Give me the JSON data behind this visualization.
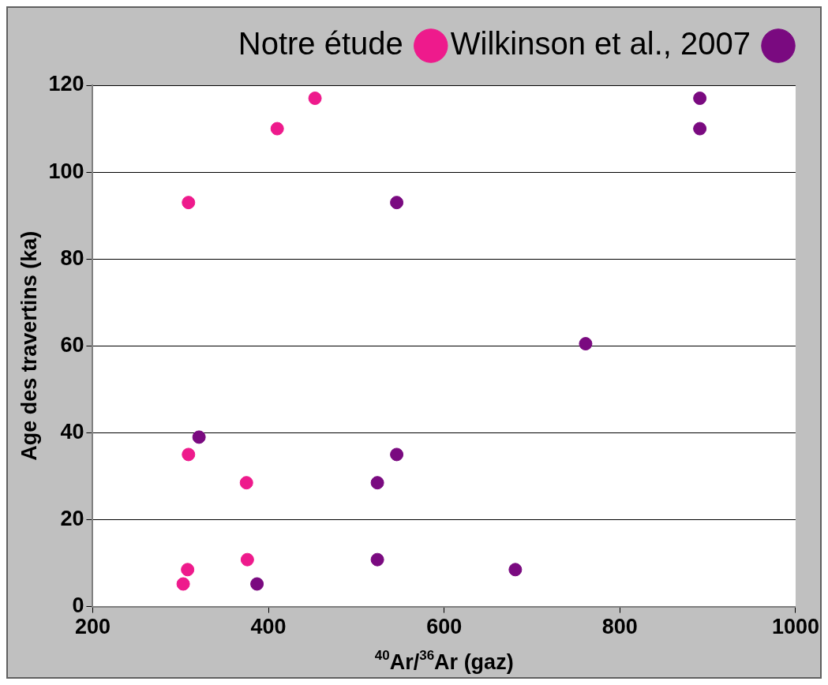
{
  "chart_data": {
    "type": "scatter",
    "xlabel": "$^{40}$Ar/$^{36}$Ar (gaz)",
    "ylabel": "Age des travertins (ka)",
    "series": [
      {
        "name": "Notre étude",
        "color": "#ee1a8c",
        "x": [
          303,
          308,
          309,
          309,
          376,
          375,
          410,
          453
        ],
        "values": [
          5.2,
          8.5,
          35,
          93,
          10.8,
          28.5,
          110,
          117
        ]
      },
      {
        "name": "Wilkinson et al., 2007",
        "color": "#7a0a80",
        "x": [
          387,
          321,
          524,
          524,
          546,
          546,
          681,
          761,
          891,
          891
        ],
        "values": [
          5.2,
          39,
          10.8,
          28.5,
          35,
          93,
          8.5,
          60.5,
          110,
          117
        ]
      }
    ],
    "xlim": [
      200,
      1000
    ],
    "xticks": [
      200,
      400,
      600,
      800,
      1000
    ],
    "ylim": [
      0,
      120
    ],
    "yticks": [
      0,
      20,
      40,
      60,
      80,
      100,
      120
    ],
    "grid": "y",
    "legend": "top right",
    "marker": "circle"
  }
}
